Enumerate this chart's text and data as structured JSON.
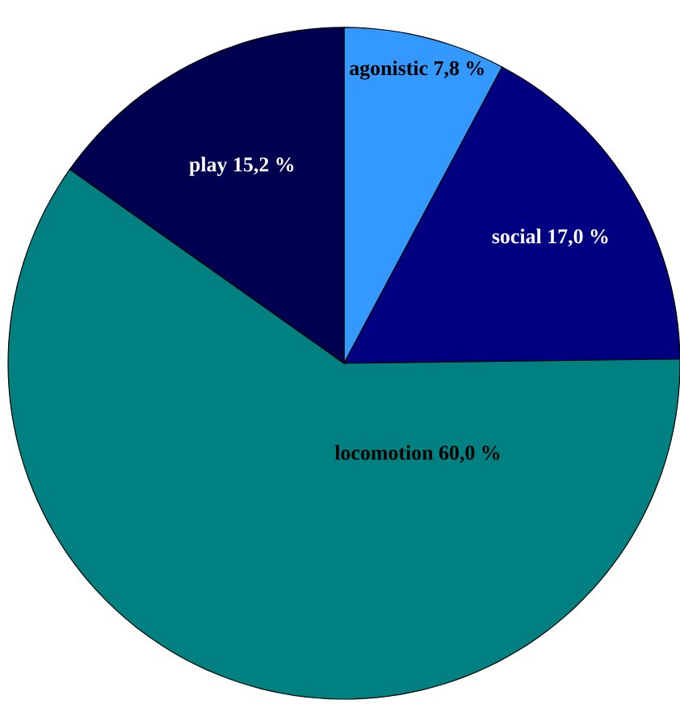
{
  "chart_data": {
    "type": "pie",
    "categories": [
      "agonistic",
      "social",
      "locomotion",
      "play"
    ],
    "values": [
      7.8,
      17.0,
      60.0,
      15.2
    ],
    "value_labels": [
      "7,8 %",
      "17,0 %",
      "60,0 %",
      "15,2 %"
    ],
    "colors": [
      "#3399ff",
      "#000080",
      "#008080",
      "#000050"
    ]
  }
}
